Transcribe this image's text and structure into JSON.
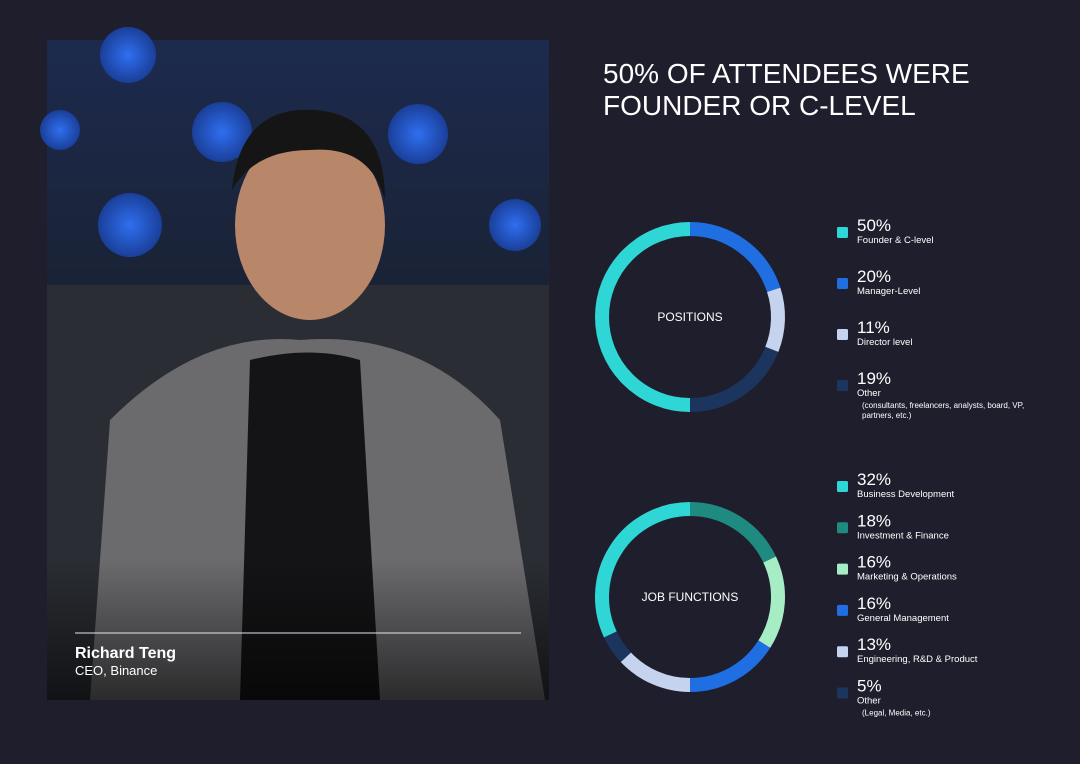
{
  "title_lines": [
    "50% OF ATTENDEES WERE",
    "FOUNDER OR C-LEVEL"
  ],
  "photo": {
    "name": "Richard Teng",
    "role": "CEO, Binance"
  },
  "chart_data": [
    {
      "type": "pie",
      "center_label": "POSITIONS",
      "categories": [
        "Founder & C-level",
        "Manager-Level",
        "Director level",
        "Other"
      ],
      "notes": [
        null,
        null,
        null,
        "(consultants, freelancers, analysts, board, VP, partners, etc.)"
      ],
      "values": [
        50,
        20,
        11,
        19
      ],
      "value_labels": [
        "50%",
        "20%",
        "11%",
        "19%"
      ],
      "colors": [
        "#2fd6d6",
        "#1f6fe3",
        "#c6d3ee",
        "#1c355f"
      ]
    },
    {
      "type": "pie",
      "center_label": "JOB FUNCTIONS",
      "categories": [
        "Business Development",
        "Investment & Finance",
        "Marketing & Operations",
        "General Management",
        "Engineering, R&D & Product",
        "Other"
      ],
      "notes": [
        null,
        null,
        null,
        null,
        null,
        "(Legal, Media, etc.)"
      ],
      "values": [
        32,
        18,
        16,
        16,
        13,
        5
      ],
      "value_labels": [
        "32%",
        "18%",
        "16%",
        "16%",
        "13%",
        "5%"
      ],
      "colors": [
        "#2fd6d6",
        "#1e8a80",
        "#a6ecc4",
        "#1f6fe3",
        "#c6d3ee",
        "#1c355f"
      ]
    }
  ]
}
